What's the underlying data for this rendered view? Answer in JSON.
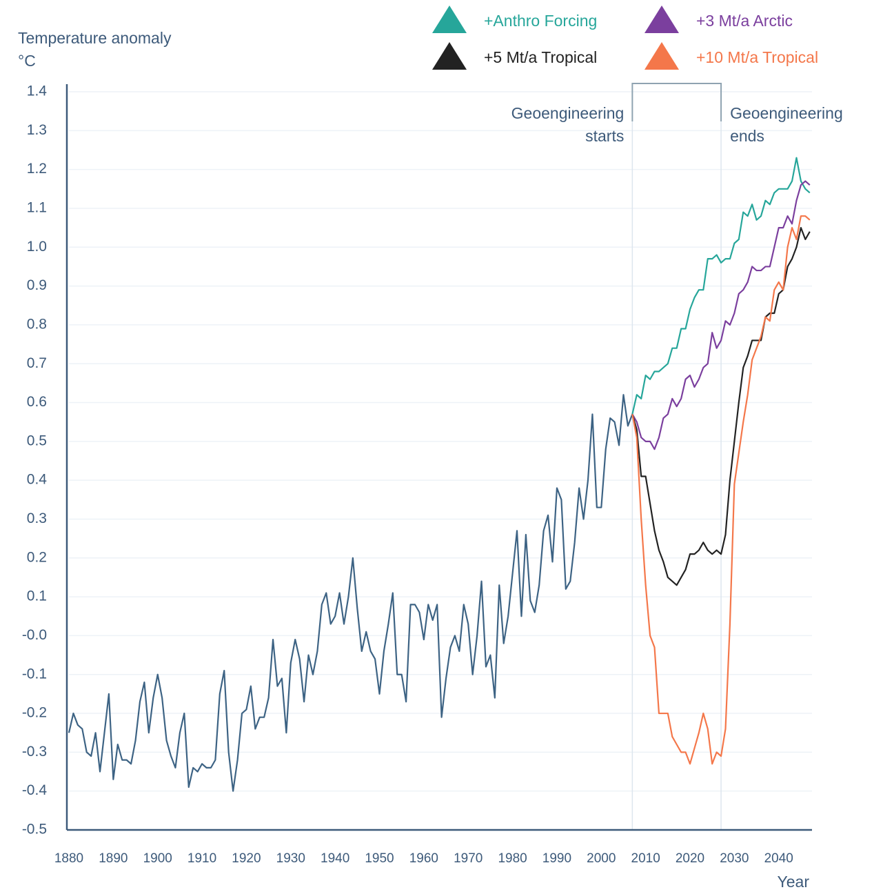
{
  "chart_data": {
    "type": "line",
    "y_label": [
      "Temperature anomaly",
      "°C"
    ],
    "x_label": "Year",
    "xlim": [
      1880,
      2047.5
    ],
    "xticks": [
      1880,
      1890,
      1900,
      1910,
      1920,
      1930,
      1940,
      1950,
      1960,
      1970,
      1980,
      1990,
      2000,
      2010,
      2020,
      2030,
      2040
    ],
    "ylim": [
      -0.5,
      1.4
    ],
    "yticks": [
      -0.5,
      -0.4,
      -0.3,
      -0.2,
      -0.1,
      {
        "value": 0,
        "label": "-0.0"
      },
      0.1,
      0.2,
      0.3,
      0.4,
      0.5,
      0.6,
      0.7,
      0.8,
      0.9,
      {
        "value": 1,
        "label": "1.0"
      },
      1.1,
      1.2,
      1.3,
      1.4
    ],
    "grid": true,
    "legend": "top",
    "annotations": [
      {
        "lines": [
          "Geoengineering",
          "starts"
        ],
        "x": 2007
      },
      {
        "lines": [
          "Geoengineering",
          "ends"
        ],
        "x": 2027
      }
    ],
    "series": [
      {
        "color": "#3d6384",
        "x": [
          1880,
          1881,
          1882,
          1883,
          1884,
          1885,
          1886,
          1887,
          1888,
          1889,
          1890,
          1891,
          1892,
          1893,
          1894,
          1895,
          1896,
          1897,
          1898,
          1899,
          1900,
          1901,
          1902,
          1903,
          1904,
          1905,
          1906,
          1907,
          1908,
          1909,
          1910,
          1911,
          1912,
          1913,
          1914,
          1915,
          1916,
          1917,
          1918,
          1919,
          1920,
          1921,
          1922,
          1923,
          1924,
          1925,
          1926,
          1927,
          1928,
          1929,
          1930,
          1931,
          1932,
          1933,
          1934,
          1935,
          1936,
          1937,
          1938,
          1939,
          1940,
          1941,
          1942,
          1943,
          1944,
          1945,
          1946,
          1947,
          1948,
          1949,
          1950,
          1951,
          1952,
          1953,
          1954,
          1955,
          1956,
          1957,
          1958,
          1959,
          1960,
          1961,
          1962,
          1963,
          1964,
          1965,
          1966,
          1967,
          1968,
          1969,
          1970,
          1971,
          1972,
          1973,
          1974,
          1975,
          1976,
          1977,
          1978,
          1979,
          1980,
          1981,
          1982,
          1983,
          1984,
          1985,
          1986,
          1987,
          1988,
          1989,
          1990,
          1991,
          1992,
          1993,
          1994,
          1995,
          1996,
          1997,
          1998,
          1999,
          2000,
          2001,
          2002,
          2003,
          2004,
          2005,
          2006,
          2007
        ],
        "values": [
          -0.25,
          -0.2,
          -0.23,
          -0.24,
          -0.3,
          -0.31,
          -0.25,
          -0.35,
          -0.25,
          -0.15,
          -0.37,
          -0.28,
          -0.32,
          -0.32,
          -0.33,
          -0.27,
          -0.17,
          -0.12,
          -0.25,
          -0.16,
          -0.1,
          -0.16,
          -0.27,
          -0.31,
          -0.34,
          -0.25,
          -0.2,
          -0.39,
          -0.34,
          -0.35,
          -0.33,
          -0.34,
          -0.34,
          -0.32,
          -0.15,
          -0.09,
          -0.3,
          -0.4,
          -0.32,
          -0.2,
          -0.19,
          -0.13,
          -0.24,
          -0.21,
          -0.21,
          -0.16,
          -0.01,
          -0.13,
          -0.11,
          -0.25,
          -0.07,
          -0.01,
          -0.06,
          -0.17,
          -0.05,
          -0.1,
          -0.04,
          0.08,
          0.11,
          0.03,
          0.05,
          0.11,
          0.03,
          0.1,
          0.2,
          0.07,
          -0.04,
          0.01,
          -0.04,
          -0.06,
          -0.15,
          -0.04,
          0.03,
          0.11,
          -0.1,
          -0.1,
          -0.17,
          0.08,
          0.08,
          0.06,
          -0.01,
          0.08,
          0.04,
          0.08,
          -0.21,
          -0.11,
          -0.03,
          0.0,
          -0.04,
          0.08,
          0.03,
          -0.1,
          0.0,
          0.14,
          -0.08,
          -0.05,
          -0.16,
          0.13,
          -0.02,
          0.05,
          0.16,
          0.27,
          0.05,
          0.26,
          0.09,
          0.06,
          0.13,
          0.27,
          0.31,
          0.19,
          0.38,
          0.35,
          0.12,
          0.14,
          0.24,
          0.38,
          0.3,
          0.4,
          0.57,
          0.33,
          0.33,
          0.48,
          0.56,
          0.55,
          0.49,
          0.62,
          0.54,
          0.57
        ]
      },
      {
        "name": "+Anthro Forcing",
        "color": "#26a69a",
        "x": [
          2007,
          2008,
          2009,
          2010,
          2011,
          2012,
          2013,
          2014,
          2015,
          2016,
          2017,
          2018,
          2019,
          2020,
          2021,
          2022,
          2023,
          2024,
          2025,
          2026,
          2027,
          2028,
          2029,
          2030,
          2031,
          2032,
          2033,
          2034,
          2035,
          2036,
          2037,
          2038,
          2039,
          2040,
          2041,
          2042,
          2043,
          2044,
          2045,
          2046,
          2047
        ],
        "values": [
          0.57,
          0.62,
          0.61,
          0.67,
          0.66,
          0.68,
          0.68,
          0.69,
          0.7,
          0.74,
          0.74,
          0.79,
          0.79,
          0.84,
          0.87,
          0.89,
          0.89,
          0.97,
          0.97,
          0.98,
          0.96,
          0.97,
          0.97,
          1.01,
          1.02,
          1.09,
          1.08,
          1.11,
          1.07,
          1.08,
          1.12,
          1.11,
          1.14,
          1.15,
          1.15,
          1.15,
          1.17,
          1.23,
          1.17,
          1.15,
          1.14
        ]
      },
      {
        "name": "+3 Mt/a Arctic",
        "color": "#7b3f9e",
        "x": [
          2007,
          2008,
          2009,
          2010,
          2011,
          2012,
          2013,
          2014,
          2015,
          2016,
          2017,
          2018,
          2019,
          2020,
          2021,
          2022,
          2023,
          2024,
          2025,
          2026,
          2027,
          2028,
          2029,
          2030,
          2031,
          2032,
          2033,
          2034,
          2035,
          2036,
          2037,
          2038,
          2039,
          2040,
          2041,
          2042,
          2043,
          2044,
          2045,
          2046,
          2047
        ],
        "values": [
          0.57,
          0.55,
          0.51,
          0.5,
          0.5,
          0.48,
          0.51,
          0.56,
          0.57,
          0.61,
          0.59,
          0.61,
          0.66,
          0.67,
          0.64,
          0.66,
          0.69,
          0.7,
          0.78,
          0.74,
          0.76,
          0.81,
          0.8,
          0.83,
          0.88,
          0.89,
          0.91,
          0.95,
          0.94,
          0.94,
          0.95,
          0.95,
          1.0,
          1.05,
          1.05,
          1.08,
          1.06,
          1.12,
          1.16,
          1.17,
          1.16
        ]
      },
      {
        "name": "+5 Mt/a Tropical",
        "color": "#222222",
        "x": [
          2007,
          2008,
          2009,
          2010,
          2011,
          2012,
          2013,
          2014,
          2015,
          2016,
          2017,
          2018,
          2019,
          2020,
          2021,
          2022,
          2023,
          2024,
          2025,
          2026,
          2027,
          2028,
          2029,
          2030,
          2031,
          2032,
          2033,
          2034,
          2035,
          2036,
          2037,
          2038,
          2039,
          2040,
          2041,
          2042,
          2043,
          2044,
          2045,
          2046,
          2047
        ],
        "values": [
          0.57,
          0.53,
          0.41,
          0.41,
          0.34,
          0.27,
          0.22,
          0.19,
          0.15,
          0.14,
          0.13,
          0.15,
          0.17,
          0.21,
          0.21,
          0.22,
          0.24,
          0.22,
          0.21,
          0.22,
          0.21,
          0.26,
          0.4,
          0.5,
          0.6,
          0.69,
          0.72,
          0.76,
          0.76,
          0.76,
          0.82,
          0.83,
          0.83,
          0.88,
          0.89,
          0.95,
          0.97,
          1.0,
          1.05,
          1.02,
          1.04
        ]
      },
      {
        "name": "+10 Mt/a Tropical",
        "color": "#f4774a",
        "x": [
          2007,
          2008,
          2009,
          2010,
          2011,
          2012,
          2013,
          2014,
          2015,
          2016,
          2017,
          2018,
          2019,
          2020,
          2021,
          2022,
          2023,
          2024,
          2025,
          2026,
          2027,
          2028,
          2029,
          2030,
          2031,
          2032,
          2033,
          2034,
          2035,
          2036,
          2037,
          2038,
          2039,
          2040,
          2041,
          2042,
          2043,
          2044,
          2045,
          2046,
          2047
        ],
        "values": [
          0.57,
          0.51,
          0.3,
          0.13,
          0.0,
          -0.03,
          -0.2,
          -0.2,
          -0.2,
          -0.26,
          -0.28,
          -0.3,
          -0.3,
          -0.33,
          -0.29,
          -0.25,
          -0.2,
          -0.24,
          -0.33,
          -0.3,
          -0.31,
          -0.24,
          0.03,
          0.39,
          0.47,
          0.55,
          0.62,
          0.71,
          0.74,
          0.77,
          0.82,
          0.81,
          0.89,
          0.91,
          0.89,
          1.0,
          1.05,
          1.02,
          1.08,
          1.08,
          1.07
        ]
      }
    ]
  }
}
